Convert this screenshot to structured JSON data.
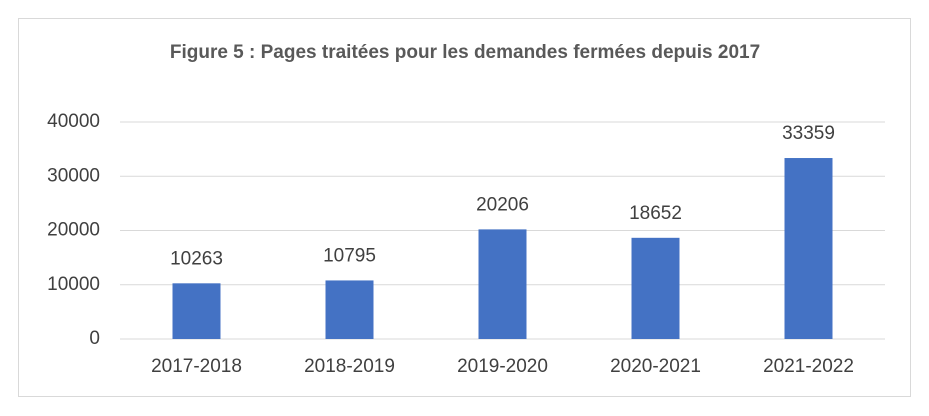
{
  "chart_data": {
    "type": "bar",
    "title": "Figure 5 : Pages traitées pour les demandes fermées depuis 2017",
    "categories": [
      "2017-2018",
      "2018-2019",
      "2019-2020",
      "2020-2021",
      "2021-2022"
    ],
    "values": [
      10263,
      10795,
      20206,
      18652,
      33359
    ],
    "color": "#4472c4",
    "ylim": [
      0,
      40000
    ],
    "yticks": [
      0,
      10000,
      20000,
      30000,
      40000
    ],
    "grid": true
  }
}
